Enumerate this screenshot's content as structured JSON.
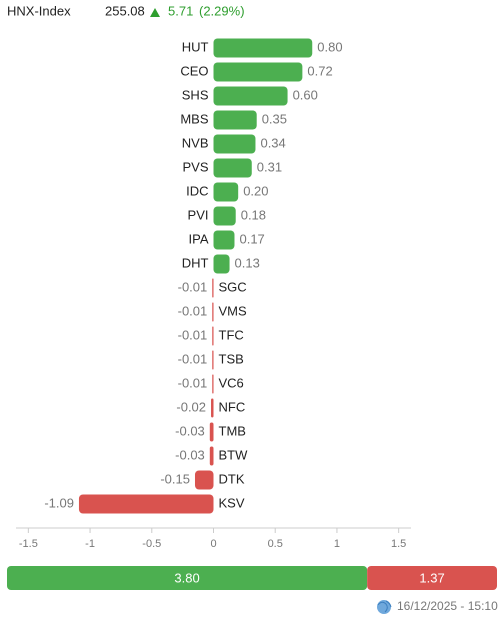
{
  "header": {
    "title": "HNX-Index",
    "value": "255.08",
    "change": "5.71",
    "change_percent": "(2.29%)"
  },
  "chart_data": {
    "type": "bar",
    "orientation": "horizontal",
    "categories": [
      "HUT",
      "CEO",
      "SHS",
      "MBS",
      "NVB",
      "PVS",
      "IDC",
      "PVI",
      "IPA",
      "DHT",
      "SGC",
      "VMS",
      "TFC",
      "TSB",
      "VC6",
      "NFC",
      "TMB",
      "BTW",
      "DTK",
      "KSV"
    ],
    "values": [
      0.8,
      0.72,
      0.6,
      0.35,
      0.34,
      0.31,
      0.2,
      0.18,
      0.17,
      0.13,
      -0.01,
      -0.01,
      -0.01,
      -0.01,
      -0.01,
      -0.02,
      -0.03,
      -0.03,
      -0.15,
      -1.09
    ],
    "value_labels": [
      "0.80",
      "0.72",
      "0.60",
      "0.35",
      "0.34",
      "0.31",
      "0.20",
      "0.18",
      "0.17",
      "0.13",
      "-0.01",
      "-0.01",
      "-0.01",
      "-0.01",
      "-0.01",
      "-0.02",
      "-0.03",
      "-0.03",
      "-0.15",
      "-1.09"
    ],
    "positive_color": "#4caf50",
    "negative_color": "#d9534f",
    "xlim": [
      -1.6,
      1.6
    ],
    "xticks": [
      -1.5,
      -1,
      -0.5,
      0,
      0.5,
      1,
      1.5
    ]
  },
  "summary": {
    "values": [
      3.8,
      1.37
    ],
    "value_labels": [
      "3.80",
      "1.37"
    ],
    "colors": [
      "#4caf50",
      "#d9534f"
    ]
  },
  "footer": {
    "timestamp": "16/12/2025 - 15:10"
  }
}
